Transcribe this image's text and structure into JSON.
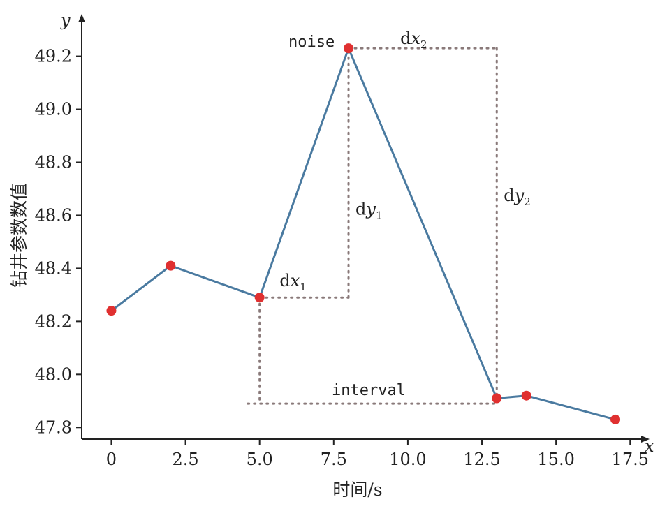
{
  "chart_data": {
    "type": "line",
    "xlabel": "时间/s",
    "ylabel": "钻井参数数值",
    "x_axis_letter": "x",
    "y_axis_letter": "y",
    "xlim": [
      -1,
      17.8
    ],
    "ylim": [
      47.756,
      49.32
    ],
    "x_ticks": [
      0,
      2.5,
      5.0,
      7.5,
      10.0,
      12.5,
      15.0,
      17.5
    ],
    "x_tick_labels": [
      "0",
      "2.5",
      "5.0",
      "7.5",
      "10.0",
      "12.5",
      "15.0",
      "17.5"
    ],
    "y_ticks": [
      47.8,
      48.0,
      48.2,
      48.4,
      48.6,
      48.8,
      49.0,
      49.2
    ],
    "y_tick_labels": [
      "47.8",
      "48.0",
      "48.2",
      "48.4",
      "48.6",
      "48.8",
      "49.0",
      "49.2"
    ],
    "points": [
      {
        "x": 0,
        "y": 48.24
      },
      {
        "x": 2,
        "y": 48.41
      },
      {
        "x": 5,
        "y": 48.29
      },
      {
        "x": 8,
        "y": 49.23
      },
      {
        "x": 13,
        "y": 47.91
      },
      {
        "x": 14,
        "y": 47.92
      },
      {
        "x": 17,
        "y": 47.83
      }
    ],
    "line_color": "#4a7aa0",
    "marker_color": "#e03030",
    "guide_color": "#8a7a7a",
    "annotations": {
      "noise": "noise",
      "interval": "interval",
      "dx1": {
        "base": "d",
        "var": "x",
        "sub": "1"
      },
      "dx2": {
        "base": "d",
        "var": "x",
        "sub": "2"
      },
      "dy1": {
        "base": "d",
        "var": "y",
        "sub": "1"
      },
      "dy2": {
        "base": "d",
        "var": "y",
        "sub": "2"
      }
    },
    "guides": {
      "dx1": {
        "x0": 5,
        "x1": 8,
        "y": 48.29
      },
      "dy1": {
        "x": 8,
        "y0": 48.29,
        "y1": 49.23
      },
      "dx2": {
        "x0": 8,
        "x1": 13,
        "y": 49.23
      },
      "dy2": {
        "x": 13,
        "y0": 49.23,
        "y1": 47.91
      },
      "interval": {
        "x0": 4.6,
        "x1": 13,
        "y": 47.89
      },
      "interval_left": {
        "x": 5,
        "y0": 48.29,
        "y1": 47.89
      }
    },
    "grid": false,
    "legend": "none"
  }
}
